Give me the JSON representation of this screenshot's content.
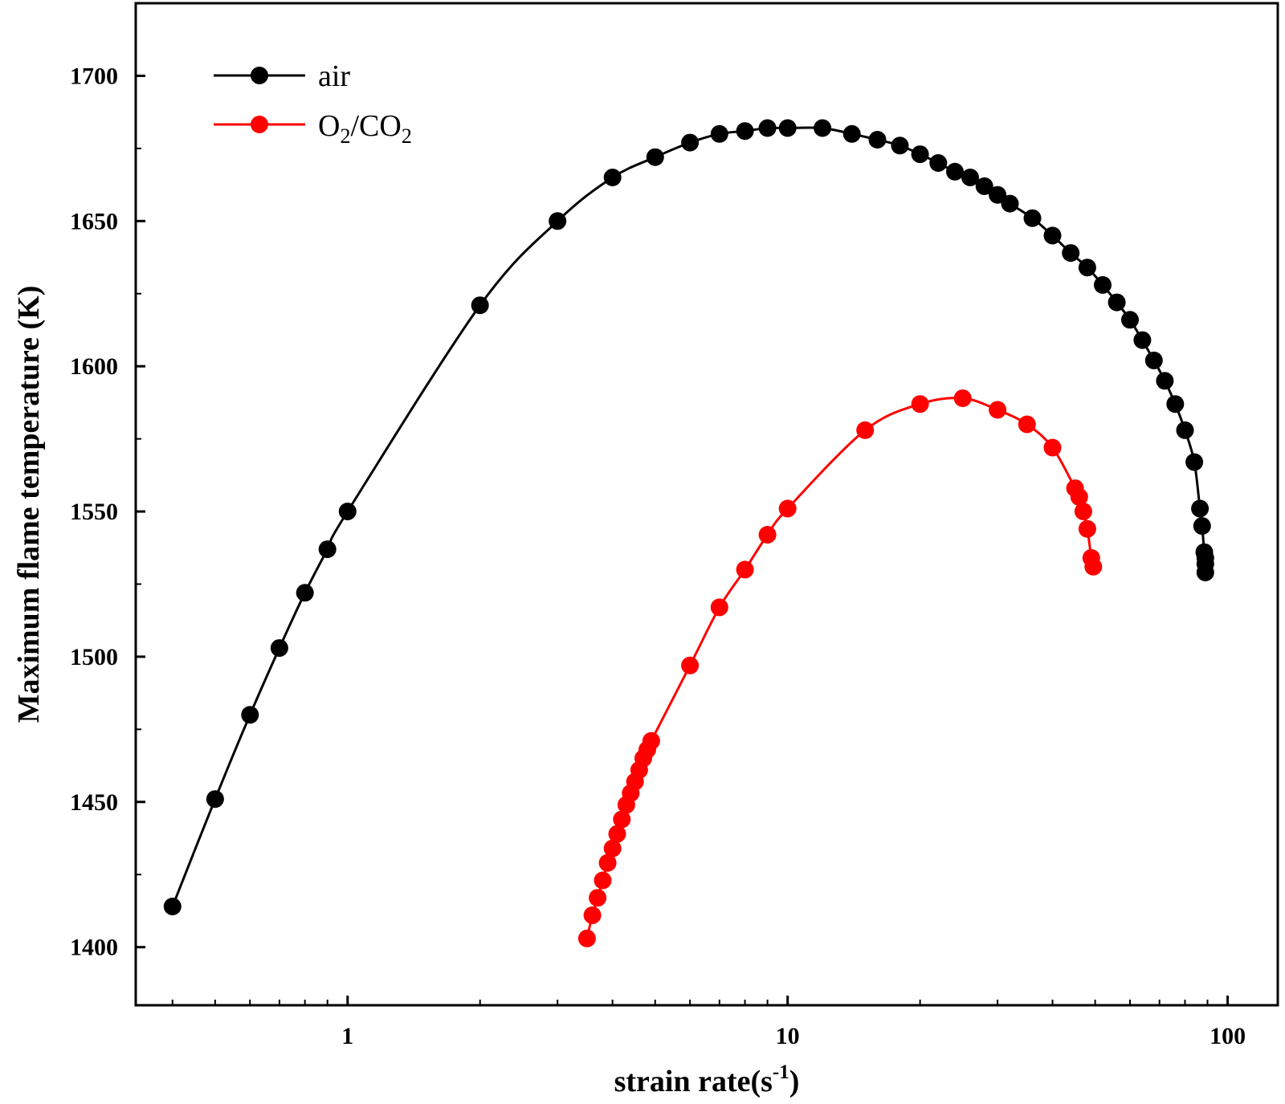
{
  "chart_data": {
    "type": "line",
    "title": "",
    "xlabel": "strain rate(s",
    "xlabel_sup": "-1",
    "xlabel_end": ")",
    "ylabel": "Maximum flame temperature (K)",
    "xscale": "log",
    "xlim": [
      0.33,
      130
    ],
    "ylim": [
      1380,
      1725
    ],
    "xticks": [
      1,
      10,
      100
    ],
    "xtick_labels": [
      "1",
      "10",
      "100"
    ],
    "yticks": [
      1400,
      1450,
      1500,
      1550,
      1600,
      1650,
      1700
    ],
    "ytick_labels": [
      "1400",
      "1450",
      "1500",
      "1550",
      "1600",
      "1650",
      "1700"
    ],
    "grid": false,
    "legend_position": "top-left",
    "series": [
      {
        "name": "air",
        "color": "#000000",
        "marker": "circle",
        "points": [
          [
            0.4,
            1414
          ],
          [
            0.5,
            1451
          ],
          [
            0.6,
            1480
          ],
          [
            0.7,
            1503
          ],
          [
            0.8,
            1522
          ],
          [
            0.9,
            1537
          ],
          [
            1.0,
            1550
          ],
          [
            2.0,
            1621
          ],
          [
            3.0,
            1650
          ],
          [
            4.0,
            1665
          ],
          [
            5.0,
            1672
          ],
          [
            6.0,
            1677
          ],
          [
            7.0,
            1680
          ],
          [
            8.0,
            1681
          ],
          [
            9.0,
            1682
          ],
          [
            10.0,
            1682
          ],
          [
            12.0,
            1682
          ],
          [
            14.0,
            1680
          ],
          [
            16.0,
            1678
          ],
          [
            18.0,
            1676
          ],
          [
            20.0,
            1673
          ],
          [
            22.0,
            1670
          ],
          [
            24.0,
            1667
          ],
          [
            26.0,
            1665
          ],
          [
            28.0,
            1662
          ],
          [
            30.0,
            1659
          ],
          [
            32.0,
            1656
          ],
          [
            36.0,
            1651
          ],
          [
            40.0,
            1645
          ],
          [
            44.0,
            1639
          ],
          [
            48.0,
            1634
          ],
          [
            52.0,
            1628
          ],
          [
            56.0,
            1622
          ],
          [
            60.0,
            1616
          ],
          [
            64.0,
            1609
          ],
          [
            68.0,
            1602
          ],
          [
            72.0,
            1595
          ],
          [
            76.0,
            1587
          ],
          [
            80.0,
            1578
          ],
          [
            84.0,
            1567
          ],
          [
            86.5,
            1551
          ],
          [
            87.5,
            1545
          ],
          [
            88.5,
            1536
          ],
          [
            89.0,
            1534
          ],
          [
            89.0,
            1532
          ],
          [
            89.0,
            1529
          ]
        ]
      },
      {
        "name": "O2/CO2",
        "name_parts": [
          "O",
          "2",
          "/CO",
          "2"
        ],
        "color": "#ff0000",
        "marker": "circle",
        "points": [
          [
            3.5,
            1403
          ],
          [
            3.6,
            1411
          ],
          [
            3.7,
            1417
          ],
          [
            3.8,
            1423
          ],
          [
            3.9,
            1429
          ],
          [
            4.0,
            1434
          ],
          [
            4.1,
            1439
          ],
          [
            4.2,
            1444
          ],
          [
            4.3,
            1449
          ],
          [
            4.4,
            1453
          ],
          [
            4.5,
            1457
          ],
          [
            4.6,
            1461
          ],
          [
            4.7,
            1465
          ],
          [
            4.8,
            1468
          ],
          [
            4.9,
            1471
          ],
          [
            6.0,
            1497
          ],
          [
            7.0,
            1517
          ],
          [
            8.0,
            1530
          ],
          [
            9.0,
            1542
          ],
          [
            10.0,
            1551
          ],
          [
            15.0,
            1578
          ],
          [
            20.0,
            1587
          ],
          [
            25.0,
            1589
          ],
          [
            30.0,
            1585
          ],
          [
            35.0,
            1580
          ],
          [
            40.0,
            1572
          ],
          [
            45.0,
            1558
          ],
          [
            46.0,
            1555
          ],
          [
            47.0,
            1550
          ],
          [
            48.0,
            1544
          ],
          [
            49.0,
            1534
          ],
          [
            49.5,
            1531
          ]
        ]
      }
    ]
  }
}
